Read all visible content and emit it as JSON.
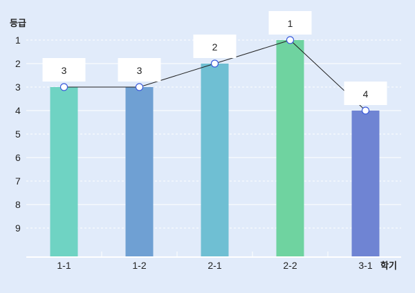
{
  "chart_data": {
    "type": "bar",
    "title": "",
    "ylabel": "등급",
    "xlabel": "학기",
    "categories": [
      "1-1",
      "1-2",
      "2-1",
      "2-2",
      "3-1"
    ],
    "values": [
      3,
      3,
      2,
      1,
      4
    ],
    "data_labels": [
      "3",
      "3",
      "2",
      "1",
      "4"
    ],
    "y_ticks": [
      "1",
      "2",
      "3",
      "4",
      "5",
      "6",
      "7",
      "8",
      "9"
    ],
    "ylim": [
      10,
      1
    ],
    "y_inverted": true,
    "grid": true,
    "overlay_line": true,
    "bar_colors": [
      "#6fd3c3",
      "#6fa0d3",
      "#6fbfd3",
      "#6fd3a0",
      "#6f84d3"
    ],
    "line_color": "#222222",
    "background": "#e1ebfa"
  }
}
